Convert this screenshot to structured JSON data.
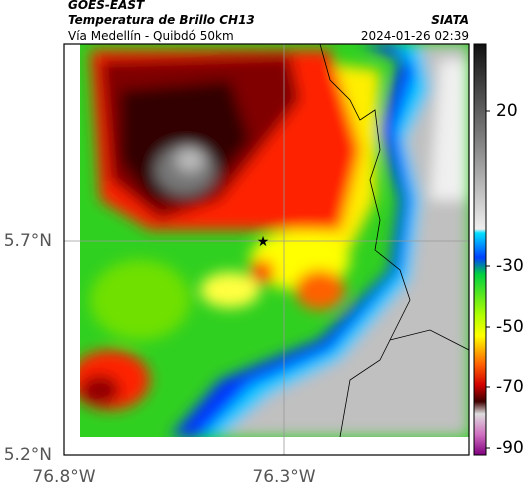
{
  "header": {
    "source": "GOES-EAST",
    "title": "Temperatura de Brillo CH13",
    "subtitle": "Vía Medellín - Quibdó 50km",
    "org": "SIATA",
    "datetime": "2024-01-26 02:39"
  },
  "axes": {
    "lat_ticks": [
      "5.7°N",
      "5.2°N"
    ],
    "lon_ticks": [
      "76.8°W",
      "76.3°W"
    ]
  },
  "colorbar": {
    "ticks": [
      "20",
      "-30",
      "-50",
      "-70",
      "-90"
    ]
  }
}
